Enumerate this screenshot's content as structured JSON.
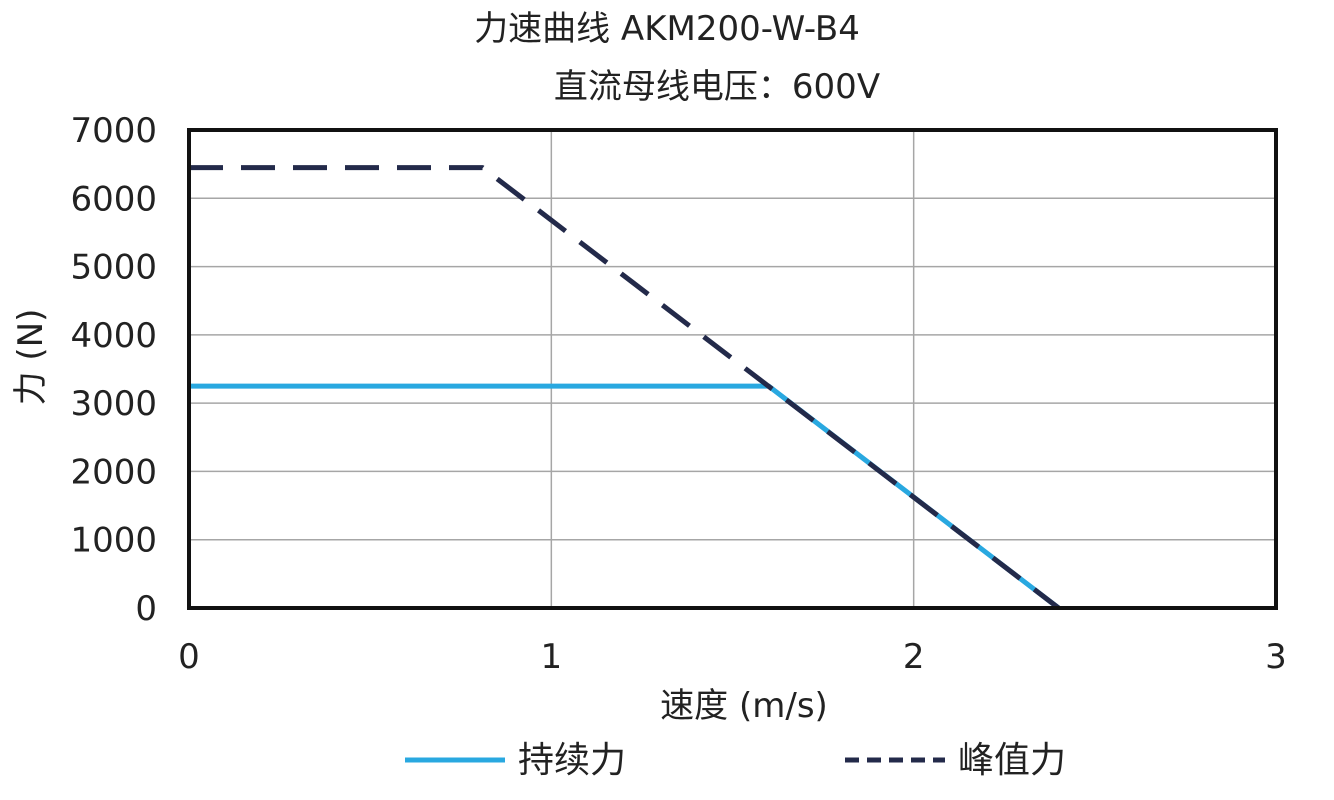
{
  "chart_data": {
    "type": "line",
    "title": "力速曲线 AKM200-W-B4",
    "subtitle": "直流母线电压：600V",
    "xlabel": "速度 (m/s)",
    "ylabel": "力 (N)",
    "xlim": [
      0,
      3
    ],
    "ylim": [
      0,
      7000
    ],
    "x_ticks": [
      "0",
      "1",
      "2",
      "3"
    ],
    "y_ticks": [
      "0",
      "1000",
      "2000",
      "3000",
      "4000",
      "5000",
      "6000",
      "7000"
    ],
    "grid": true,
    "legend_position": "bottom",
    "series": [
      {
        "name": "持续力",
        "color": "#29a8e0",
        "style": "solid",
        "points": [
          [
            0,
            3250
          ],
          [
            1.6,
            3250
          ],
          [
            2.4,
            0
          ]
        ]
      },
      {
        "name": "峰值力",
        "color": "#232a4a",
        "style": "dashed",
        "points": [
          [
            0,
            6450
          ],
          [
            0.81,
            6450
          ],
          [
            2.4,
            0
          ]
        ]
      }
    ]
  }
}
